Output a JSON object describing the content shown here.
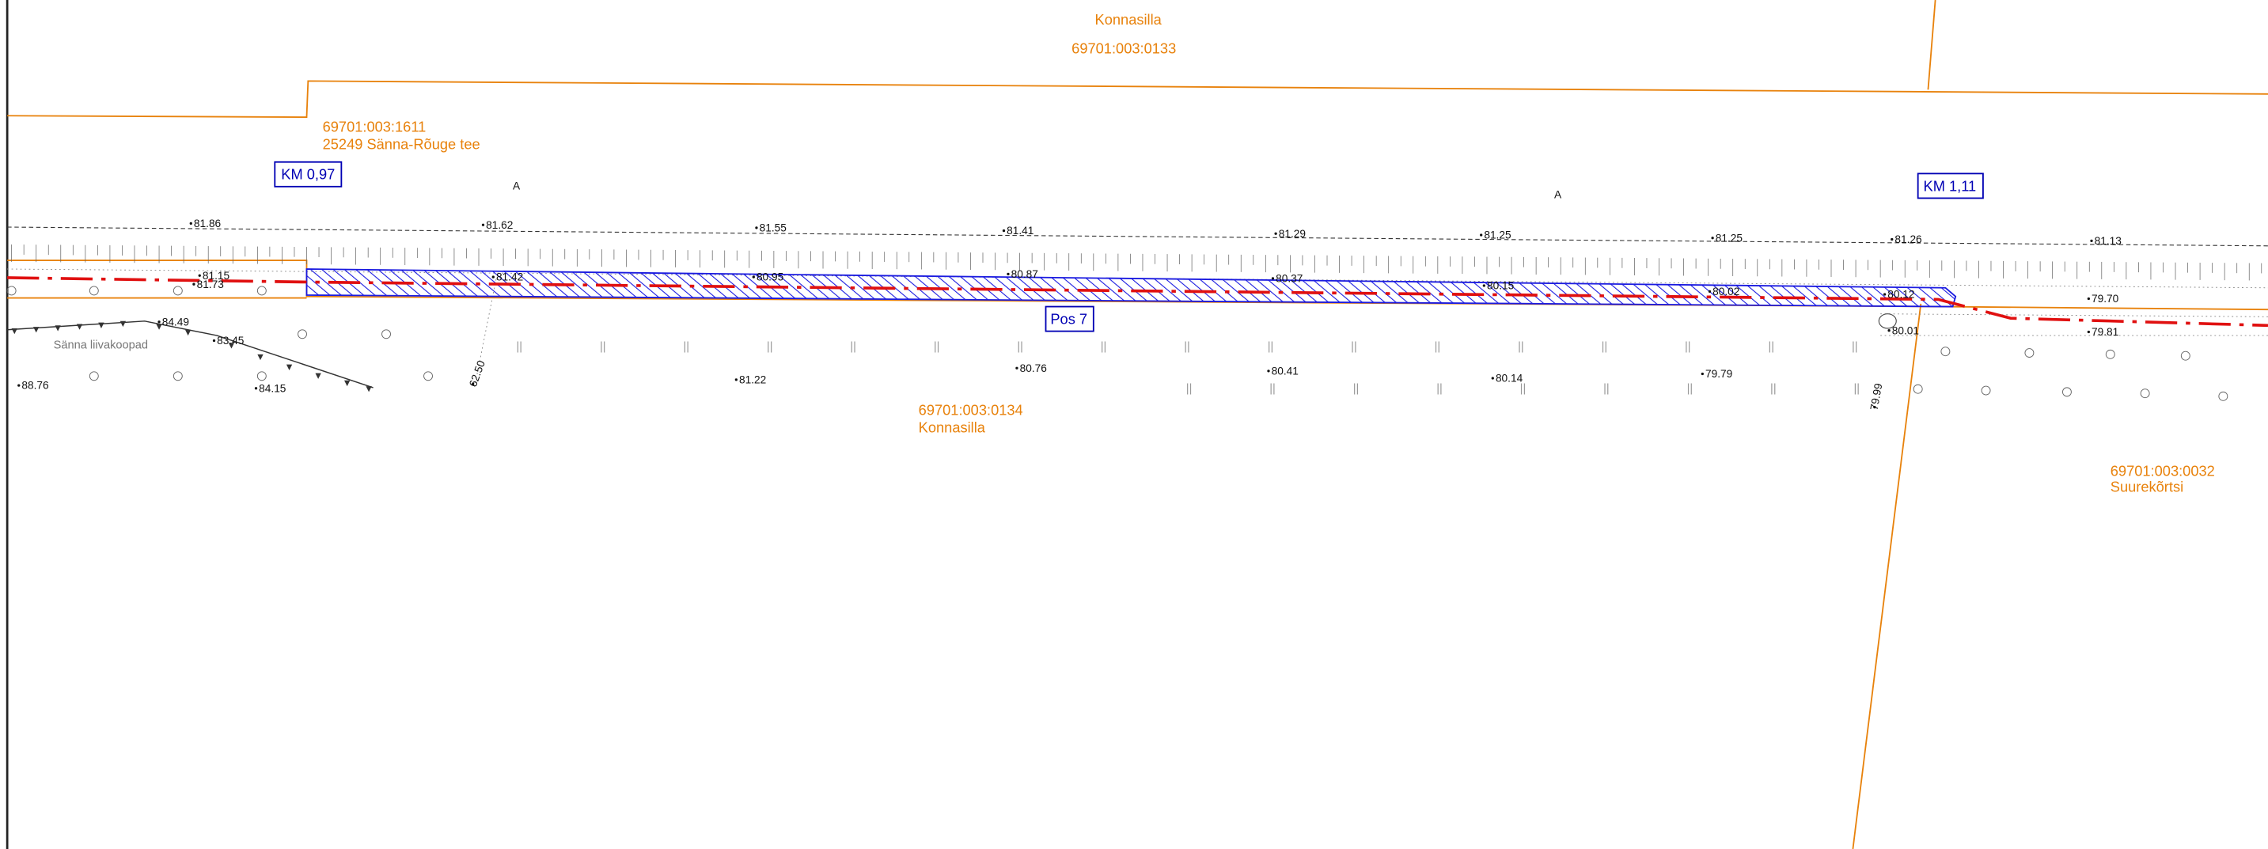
{
  "parcels": [
    {
      "id": "69701:003:0133",
      "name": "Konnasilla"
    },
    {
      "id": "69701:003:1611",
      "name": "25249 Sänna-Rõuge tee"
    },
    {
      "id": "69701:003:0134",
      "name": "Konnasilla"
    },
    {
      "id": "69701:003:0032",
      "name": "Suurekõrtsi"
    }
  ],
  "km_markers": [
    "KM 0,97",
    "KM 1,11"
  ],
  "position": "Pos 7",
  "point_labels": [
    "A",
    "A"
  ],
  "place_label": "Sänna liivakoopad",
  "elevations": [
    "81.86",
    "81.62",
    "81.55",
    "81.41",
    "81.29",
    "81.25",
    "81.25",
    "81.26",
    "81.13",
    "81.15",
    "81.73",
    "81.42",
    "80.95",
    "80.87",
    "80.37",
    "80.15",
    "80.02",
    "80.12",
    "79.70",
    "79.81",
    "80.01",
    "84.49",
    "83.45",
    "88.76",
    "84.15",
    "81.22",
    "80.76",
    "80.41",
    "80.14",
    "79.79",
    "62.50",
    "79.99"
  ]
}
